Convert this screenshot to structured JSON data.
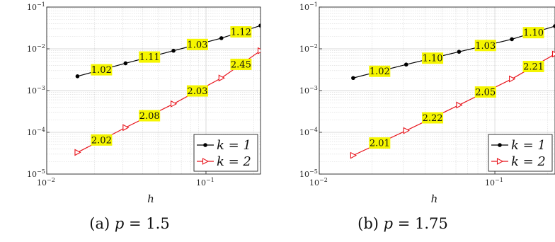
{
  "chart_data": [
    {
      "type": "line",
      "caption": "(a) p = 1.5",
      "caption_parts": {
        "prefix": "(a) ",
        "var": "p",
        "rest": " = 1.5"
      },
      "xlabel": "h",
      "xscale": "log",
      "yscale": "log",
      "xlim": [
        0.01,
        0.22
      ],
      "ylim": [
        1e-05,
        0.1
      ],
      "grid": true,
      "legend_position": "bottom-right",
      "x": [
        0.0156,
        0.03125,
        0.0625,
        0.125,
        0.22
      ],
      "series": [
        {
          "name": "k = 1",
          "color": "#000000",
          "marker": "dot",
          "y": [
            0.0022,
            0.0045,
            0.009,
            0.018,
            0.036
          ]
        },
        {
          "name": "k = 2",
          "color": "#e8141c",
          "marker": "triangle-right",
          "y": [
            3.3e-05,
            0.00013,
            0.00048,
            0.002,
            0.009
          ]
        }
      ],
      "slope_labels": {
        "k1": [
          "1.02",
          "1.11",
          "1.03",
          "1.12"
        ],
        "k2": [
          "2.02",
          "2.08",
          "2.03",
          "2.45"
        ]
      },
      "yticks": [
        {
          "base": "10",
          "exp": "−5"
        },
        {
          "base": "10",
          "exp": "−4"
        },
        {
          "base": "10",
          "exp": "−3"
        },
        {
          "base": "10",
          "exp": "−2"
        },
        {
          "base": "10",
          "exp": "−1"
        }
      ],
      "xticks": [
        {
          "base": "10",
          "exp": "−2"
        },
        {
          "base": "10",
          "exp": "−1"
        }
      ]
    },
    {
      "type": "line",
      "caption": "(b) p = 1.75",
      "caption_parts": {
        "prefix": "(b) ",
        "var": "p",
        "rest": " = 1.75"
      },
      "xlabel": "h",
      "xscale": "log",
      "yscale": "log",
      "xlim": [
        0.01,
        0.22
      ],
      "ylim": [
        1e-05,
        0.1
      ],
      "grid": true,
      "legend_position": "bottom-right",
      "x": [
        0.0156,
        0.03125,
        0.0625,
        0.125,
        0.22
      ],
      "series": [
        {
          "name": "k = 1",
          "color": "#000000",
          "marker": "dot",
          "y": [
            0.002,
            0.0042,
            0.0085,
            0.017,
            0.035
          ]
        },
        {
          "name": "k = 2",
          "color": "#e8141c",
          "marker": "triangle-right",
          "y": [
            2.8e-05,
            0.00011,
            0.00045,
            0.0019,
            0.0075
          ]
        }
      ],
      "slope_labels": {
        "k1": [
          "1.02",
          "1.10",
          "1.03",
          "1.10"
        ],
        "k2": [
          "2.01",
          "2.22",
          "2.05",
          "2.21"
        ]
      },
      "yticks": [
        {
          "base": "10",
          "exp": "−5"
        },
        {
          "base": "10",
          "exp": "−4"
        },
        {
          "base": "10",
          "exp": "−3"
        },
        {
          "base": "10",
          "exp": "−2"
        },
        {
          "base": "10",
          "exp": "−1"
        }
      ],
      "xticks": [
        {
          "base": "10",
          "exp": "−2"
        },
        {
          "base": "10",
          "exp": "−1"
        }
      ]
    }
  ],
  "colors": {
    "label_highlight": "#f5f500",
    "grid": "#d8d8d8",
    "axis": "#222222"
  }
}
